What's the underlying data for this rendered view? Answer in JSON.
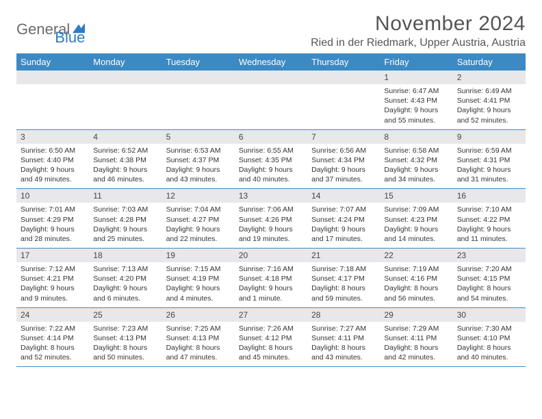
{
  "logo": {
    "text1": "General",
    "text2": "Blue"
  },
  "title": "November 2024",
  "location": "Ried in der Riedmark, Upper Austria, Austria",
  "colors": {
    "header_blue": "#3b8ac4",
    "gray_strip": "#e8e8ea",
    "text": "#333333",
    "logo_gray": "#6b6b6b",
    "logo_blue": "#2e7cc0"
  },
  "day_names": [
    "Sunday",
    "Monday",
    "Tuesday",
    "Wednesday",
    "Thursday",
    "Friday",
    "Saturday"
  ],
  "weeks": [
    [
      null,
      null,
      null,
      null,
      null,
      {
        "d": "1",
        "sr": "Sunrise: 6:47 AM",
        "ss": "Sunset: 4:43 PM",
        "dl1": "Daylight: 9 hours",
        "dl2": "and 55 minutes."
      },
      {
        "d": "2",
        "sr": "Sunrise: 6:49 AM",
        "ss": "Sunset: 4:41 PM",
        "dl1": "Daylight: 9 hours",
        "dl2": "and 52 minutes."
      }
    ],
    [
      {
        "d": "3",
        "sr": "Sunrise: 6:50 AM",
        "ss": "Sunset: 4:40 PM",
        "dl1": "Daylight: 9 hours",
        "dl2": "and 49 minutes."
      },
      {
        "d": "4",
        "sr": "Sunrise: 6:52 AM",
        "ss": "Sunset: 4:38 PM",
        "dl1": "Daylight: 9 hours",
        "dl2": "and 46 minutes."
      },
      {
        "d": "5",
        "sr": "Sunrise: 6:53 AM",
        "ss": "Sunset: 4:37 PM",
        "dl1": "Daylight: 9 hours",
        "dl2": "and 43 minutes."
      },
      {
        "d": "6",
        "sr": "Sunrise: 6:55 AM",
        "ss": "Sunset: 4:35 PM",
        "dl1": "Daylight: 9 hours",
        "dl2": "and 40 minutes."
      },
      {
        "d": "7",
        "sr": "Sunrise: 6:56 AM",
        "ss": "Sunset: 4:34 PM",
        "dl1": "Daylight: 9 hours",
        "dl2": "and 37 minutes."
      },
      {
        "d": "8",
        "sr": "Sunrise: 6:58 AM",
        "ss": "Sunset: 4:32 PM",
        "dl1": "Daylight: 9 hours",
        "dl2": "and 34 minutes."
      },
      {
        "d": "9",
        "sr": "Sunrise: 6:59 AM",
        "ss": "Sunset: 4:31 PM",
        "dl1": "Daylight: 9 hours",
        "dl2": "and 31 minutes."
      }
    ],
    [
      {
        "d": "10",
        "sr": "Sunrise: 7:01 AM",
        "ss": "Sunset: 4:29 PM",
        "dl1": "Daylight: 9 hours",
        "dl2": "and 28 minutes."
      },
      {
        "d": "11",
        "sr": "Sunrise: 7:03 AM",
        "ss": "Sunset: 4:28 PM",
        "dl1": "Daylight: 9 hours",
        "dl2": "and 25 minutes."
      },
      {
        "d": "12",
        "sr": "Sunrise: 7:04 AM",
        "ss": "Sunset: 4:27 PM",
        "dl1": "Daylight: 9 hours",
        "dl2": "and 22 minutes."
      },
      {
        "d": "13",
        "sr": "Sunrise: 7:06 AM",
        "ss": "Sunset: 4:26 PM",
        "dl1": "Daylight: 9 hours",
        "dl2": "and 19 minutes."
      },
      {
        "d": "14",
        "sr": "Sunrise: 7:07 AM",
        "ss": "Sunset: 4:24 PM",
        "dl1": "Daylight: 9 hours",
        "dl2": "and 17 minutes."
      },
      {
        "d": "15",
        "sr": "Sunrise: 7:09 AM",
        "ss": "Sunset: 4:23 PM",
        "dl1": "Daylight: 9 hours",
        "dl2": "and 14 minutes."
      },
      {
        "d": "16",
        "sr": "Sunrise: 7:10 AM",
        "ss": "Sunset: 4:22 PM",
        "dl1": "Daylight: 9 hours",
        "dl2": "and 11 minutes."
      }
    ],
    [
      {
        "d": "17",
        "sr": "Sunrise: 7:12 AM",
        "ss": "Sunset: 4:21 PM",
        "dl1": "Daylight: 9 hours",
        "dl2": "and 9 minutes."
      },
      {
        "d": "18",
        "sr": "Sunrise: 7:13 AM",
        "ss": "Sunset: 4:20 PM",
        "dl1": "Daylight: 9 hours",
        "dl2": "and 6 minutes."
      },
      {
        "d": "19",
        "sr": "Sunrise: 7:15 AM",
        "ss": "Sunset: 4:19 PM",
        "dl1": "Daylight: 9 hours",
        "dl2": "and 4 minutes."
      },
      {
        "d": "20",
        "sr": "Sunrise: 7:16 AM",
        "ss": "Sunset: 4:18 PM",
        "dl1": "Daylight: 9 hours",
        "dl2": "and 1 minute."
      },
      {
        "d": "21",
        "sr": "Sunrise: 7:18 AM",
        "ss": "Sunset: 4:17 PM",
        "dl1": "Daylight: 8 hours",
        "dl2": "and 59 minutes."
      },
      {
        "d": "22",
        "sr": "Sunrise: 7:19 AM",
        "ss": "Sunset: 4:16 PM",
        "dl1": "Daylight: 8 hours",
        "dl2": "and 56 minutes."
      },
      {
        "d": "23",
        "sr": "Sunrise: 7:20 AM",
        "ss": "Sunset: 4:15 PM",
        "dl1": "Daylight: 8 hours",
        "dl2": "and 54 minutes."
      }
    ],
    [
      {
        "d": "24",
        "sr": "Sunrise: 7:22 AM",
        "ss": "Sunset: 4:14 PM",
        "dl1": "Daylight: 8 hours",
        "dl2": "and 52 minutes."
      },
      {
        "d": "25",
        "sr": "Sunrise: 7:23 AM",
        "ss": "Sunset: 4:13 PM",
        "dl1": "Daylight: 8 hours",
        "dl2": "and 50 minutes."
      },
      {
        "d": "26",
        "sr": "Sunrise: 7:25 AM",
        "ss": "Sunset: 4:13 PM",
        "dl1": "Daylight: 8 hours",
        "dl2": "and 47 minutes."
      },
      {
        "d": "27",
        "sr": "Sunrise: 7:26 AM",
        "ss": "Sunset: 4:12 PM",
        "dl1": "Daylight: 8 hours",
        "dl2": "and 45 minutes."
      },
      {
        "d": "28",
        "sr": "Sunrise: 7:27 AM",
        "ss": "Sunset: 4:11 PM",
        "dl1": "Daylight: 8 hours",
        "dl2": "and 43 minutes."
      },
      {
        "d": "29",
        "sr": "Sunrise: 7:29 AM",
        "ss": "Sunset: 4:11 PM",
        "dl1": "Daylight: 8 hours",
        "dl2": "and 42 minutes."
      },
      {
        "d": "30",
        "sr": "Sunrise: 7:30 AM",
        "ss": "Sunset: 4:10 PM",
        "dl1": "Daylight: 8 hours",
        "dl2": "and 40 minutes."
      }
    ]
  ]
}
